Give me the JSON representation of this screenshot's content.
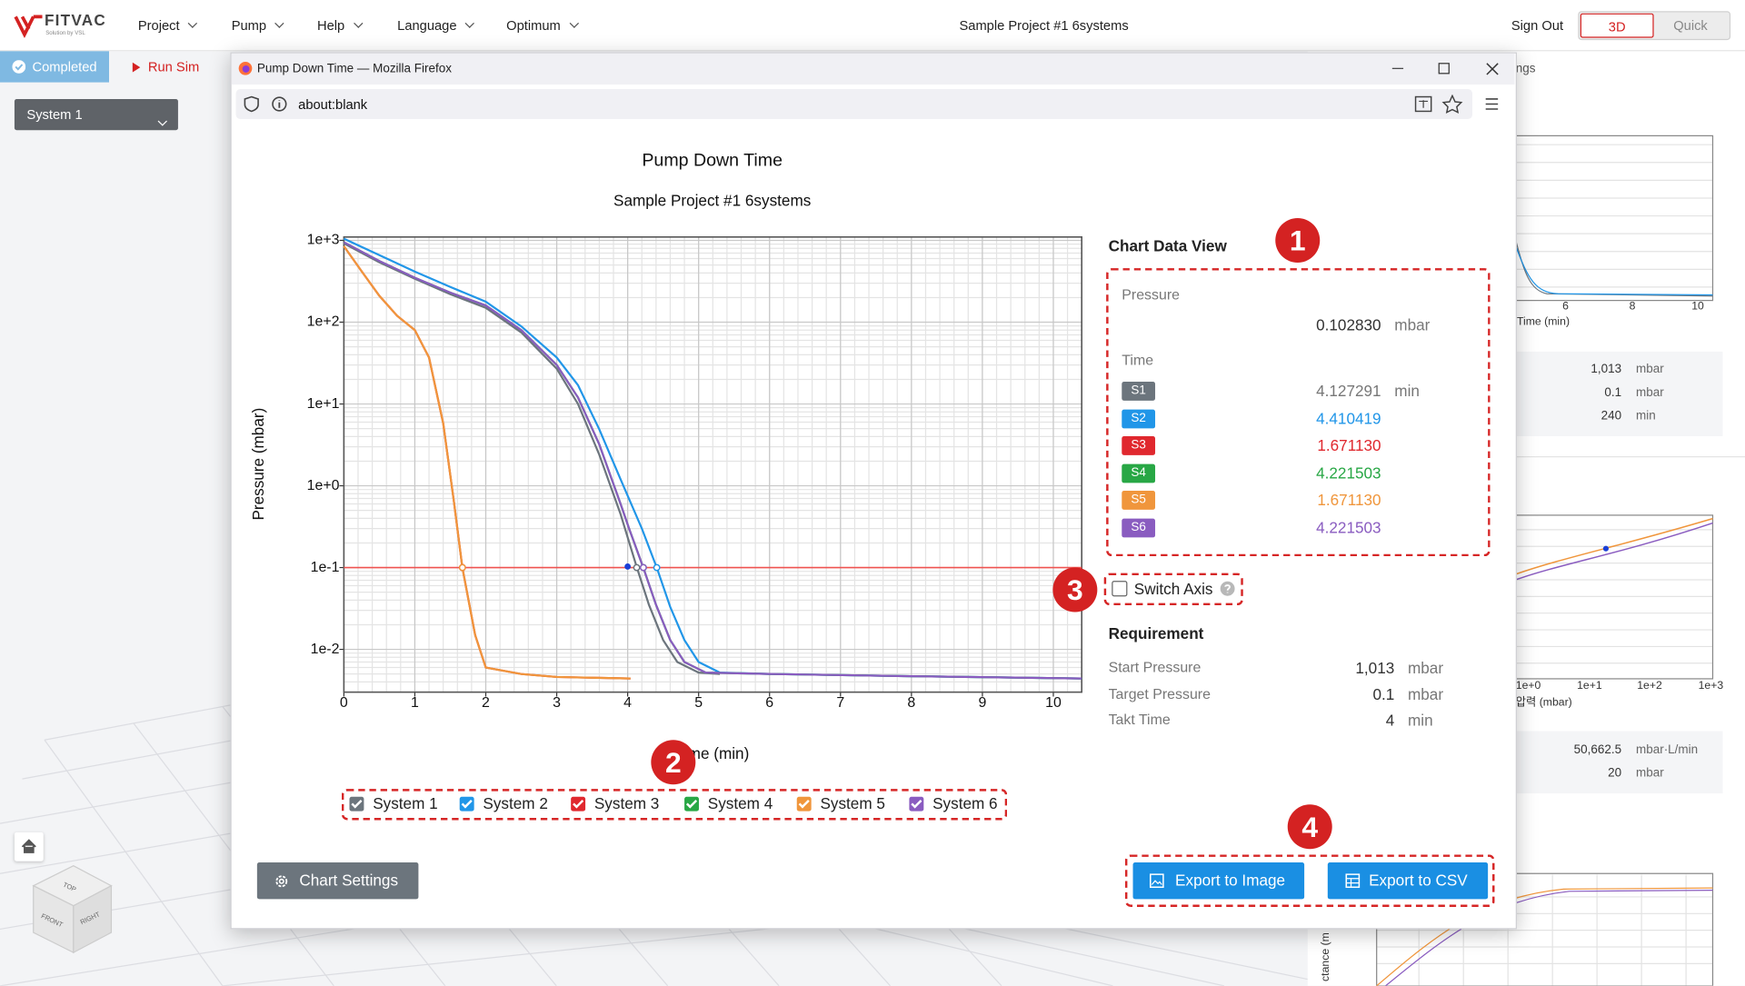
{
  "nav": {
    "logo": "FITVAC",
    "logo_sub": "Solution by VSL",
    "menu": [
      "Project",
      "Pump",
      "Help",
      "Language",
      "Optimum"
    ],
    "project_title": "Sample Project #1 6systems",
    "sign_out": "Sign Out",
    "view_toggle": [
      "3D",
      "Quick"
    ]
  },
  "toolbar": {
    "status": "Completed",
    "run": "Run Sim",
    "system_select": "System 1"
  },
  "viewcube": [
    "TOP",
    "FRONT",
    "RIGHT"
  ],
  "background_panel": {
    "tab_label": "ngs",
    "chart1_xticks": [
      "6",
      "8",
      "10"
    ],
    "chart1_xlabel": "Time (min)",
    "info1": [
      {
        "value": "1,013",
        "unit": "mbar"
      },
      {
        "value": "0.1",
        "unit": "mbar"
      },
      {
        "value": "240",
        "unit": "min"
      }
    ],
    "chart2_xticks": [
      "1e+0",
      "1e+1",
      "1e+2",
      "1e+3"
    ],
    "chart2_xlabel": "압력 (mbar)",
    "info2": [
      {
        "value": "50,662.5",
        "unit": "mbar·L/min"
      },
      {
        "value": "20",
        "unit": "mbar"
      }
    ],
    "chart3_ylabel": "ctance (m"
  },
  "window": {
    "title": "Pump Down Time — Mozilla Firefox",
    "url": "about:blank"
  },
  "chart_data": {
    "type": "line",
    "title": "Pump Down Time",
    "subtitle": "Sample Project #1 6systems",
    "xlabel": "Time (min)",
    "ylabel": "Pressure (mbar)",
    "xlim": [
      0,
      10.4
    ],
    "ylim": [
      0.003,
      1100
    ],
    "xticks": [
      0,
      1,
      2,
      3,
      4,
      5,
      6,
      7,
      8,
      9,
      10
    ],
    "yticks": [
      {
        "value": 1000,
        "label": "1e+3"
      },
      {
        "value": 100,
        "label": "1e+2"
      },
      {
        "value": 10,
        "label": "1e+1"
      },
      {
        "value": 1,
        "label": "1e+0"
      },
      {
        "value": 0.1,
        "label": "1e-1"
      },
      {
        "value": 0.01,
        "label": "1e-2"
      }
    ],
    "log_y": true,
    "grid": true,
    "threshold": {
      "value": 0.1,
      "color": "#ef5350"
    },
    "crossings": [
      4.127291,
      4.410419,
      1.67113,
      4.221503,
      1.67113,
      4.221503
    ],
    "cursor": {
      "x": 4.0,
      "y": 0.10283,
      "color": "#1a3fd6"
    },
    "series": [
      {
        "name": "System 1",
        "color": "#6c757d",
        "visible": true,
        "x": [
          0,
          0.5,
          1,
          1.5,
          2,
          2.5,
          3,
          3.3,
          3.6,
          3.9,
          4.13,
          4.3,
          4.5,
          4.7,
          5,
          5.3
        ],
        "values": [
          920,
          540,
          340,
          220,
          150,
          75,
          27,
          10,
          2.4,
          0.45,
          0.1,
          0.035,
          0.013,
          0.007,
          0.0052,
          0.005
        ]
      },
      {
        "name": "System 2",
        "color": "#2196e8",
        "visible": true,
        "x": [
          0,
          0.5,
          1,
          1.5,
          2,
          2.5,
          3,
          3.3,
          3.6,
          3.9,
          4.2,
          4.41,
          4.6,
          4.8,
          5,
          5.3,
          6,
          8,
          10.4
        ],
        "values": [
          1050,
          660,
          415,
          270,
          178,
          89,
          37,
          17,
          4.9,
          1.2,
          0.3,
          0.1,
          0.033,
          0.013,
          0.007,
          0.0052,
          0.005,
          0.0047,
          0.0044
        ]
      },
      {
        "name": "System 3",
        "color": "#e0282e",
        "visible": true,
        "x": [
          0,
          0.25,
          0.5,
          0.75,
          1,
          1.2,
          1.4,
          1.55,
          1.67,
          1.85,
          2,
          2.5,
          3,
          3.5,
          4.04
        ],
        "values": [
          850,
          420,
          210,
          120,
          80,
          37,
          5.8,
          0.65,
          0.1,
          0.015,
          0.006,
          0.005,
          0.0046,
          0.0045,
          0.0044
        ]
      },
      {
        "name": "System 4",
        "color": "#28a745",
        "visible": true,
        "x": [
          0,
          0.5,
          1,
          1.5,
          2,
          2.5,
          3,
          3.3,
          3.6,
          3.9,
          4.02,
          4.22,
          4.4,
          4.6,
          4.8,
          5.1,
          6,
          8,
          10.4
        ],
        "values": [
          950,
          560,
          350,
          230,
          160,
          80,
          30,
          12,
          3.2,
          0.6,
          0.3,
          0.1,
          0.035,
          0.013,
          0.007,
          0.0052,
          0.005,
          0.0047,
          0.0044
        ]
      },
      {
        "name": "System 5",
        "color": "#f0963c",
        "visible": true,
        "x": [
          0,
          0.25,
          0.5,
          0.75,
          1,
          1.2,
          1.4,
          1.55,
          1.67,
          1.85,
          2,
          2.5,
          3,
          3.5,
          4.04
        ],
        "values": [
          850,
          420,
          210,
          120,
          80,
          37,
          5.8,
          0.65,
          0.1,
          0.015,
          0.006,
          0.005,
          0.0046,
          0.0045,
          0.0044
        ]
      },
      {
        "name": "System 6",
        "color": "#8a5cc0",
        "visible": true,
        "x": [
          0,
          0.5,
          1,
          1.5,
          2,
          2.5,
          3,
          3.3,
          3.6,
          3.9,
          4.02,
          4.22,
          4.4,
          4.6,
          4.8,
          5.1,
          6,
          8,
          10.4
        ],
        "values": [
          950,
          560,
          350,
          230,
          160,
          80,
          30,
          12,
          3.2,
          0.6,
          0.3,
          0.1,
          0.035,
          0.013,
          0.007,
          0.0052,
          0.005,
          0.0047,
          0.0044
        ]
      }
    ]
  },
  "data_view": {
    "title": "Chart Data View",
    "pressure_label": "Pressure",
    "pressure_value": "0.102830",
    "pressure_unit": "mbar",
    "time_label": "Time",
    "time_unit": "min",
    "rows": [
      {
        "badge": "S1",
        "value": "4.127291"
      },
      {
        "badge": "S2",
        "value": "4.410419"
      },
      {
        "badge": "S3",
        "value": "1.671130"
      },
      {
        "badge": "S4",
        "value": "4.221503"
      },
      {
        "badge": "S5",
        "value": "1.671130"
      },
      {
        "badge": "S6",
        "value": "4.221503"
      }
    ]
  },
  "switch_axis": "Switch Axis",
  "requirement": {
    "title": "Requirement",
    "rows": [
      {
        "label": "Start Pressure",
        "value": "1,013",
        "unit": "mbar"
      },
      {
        "label": "Target Pressure",
        "value": "0.1",
        "unit": "mbar"
      },
      {
        "label": "Takt Time",
        "value": "4",
        "unit": "min"
      }
    ]
  },
  "buttons": {
    "chart_settings": "Chart Settings",
    "export_image": "Export to Image",
    "export_csv": "Export to CSV"
  },
  "annotations": [
    "1",
    "2",
    "3",
    "4"
  ]
}
